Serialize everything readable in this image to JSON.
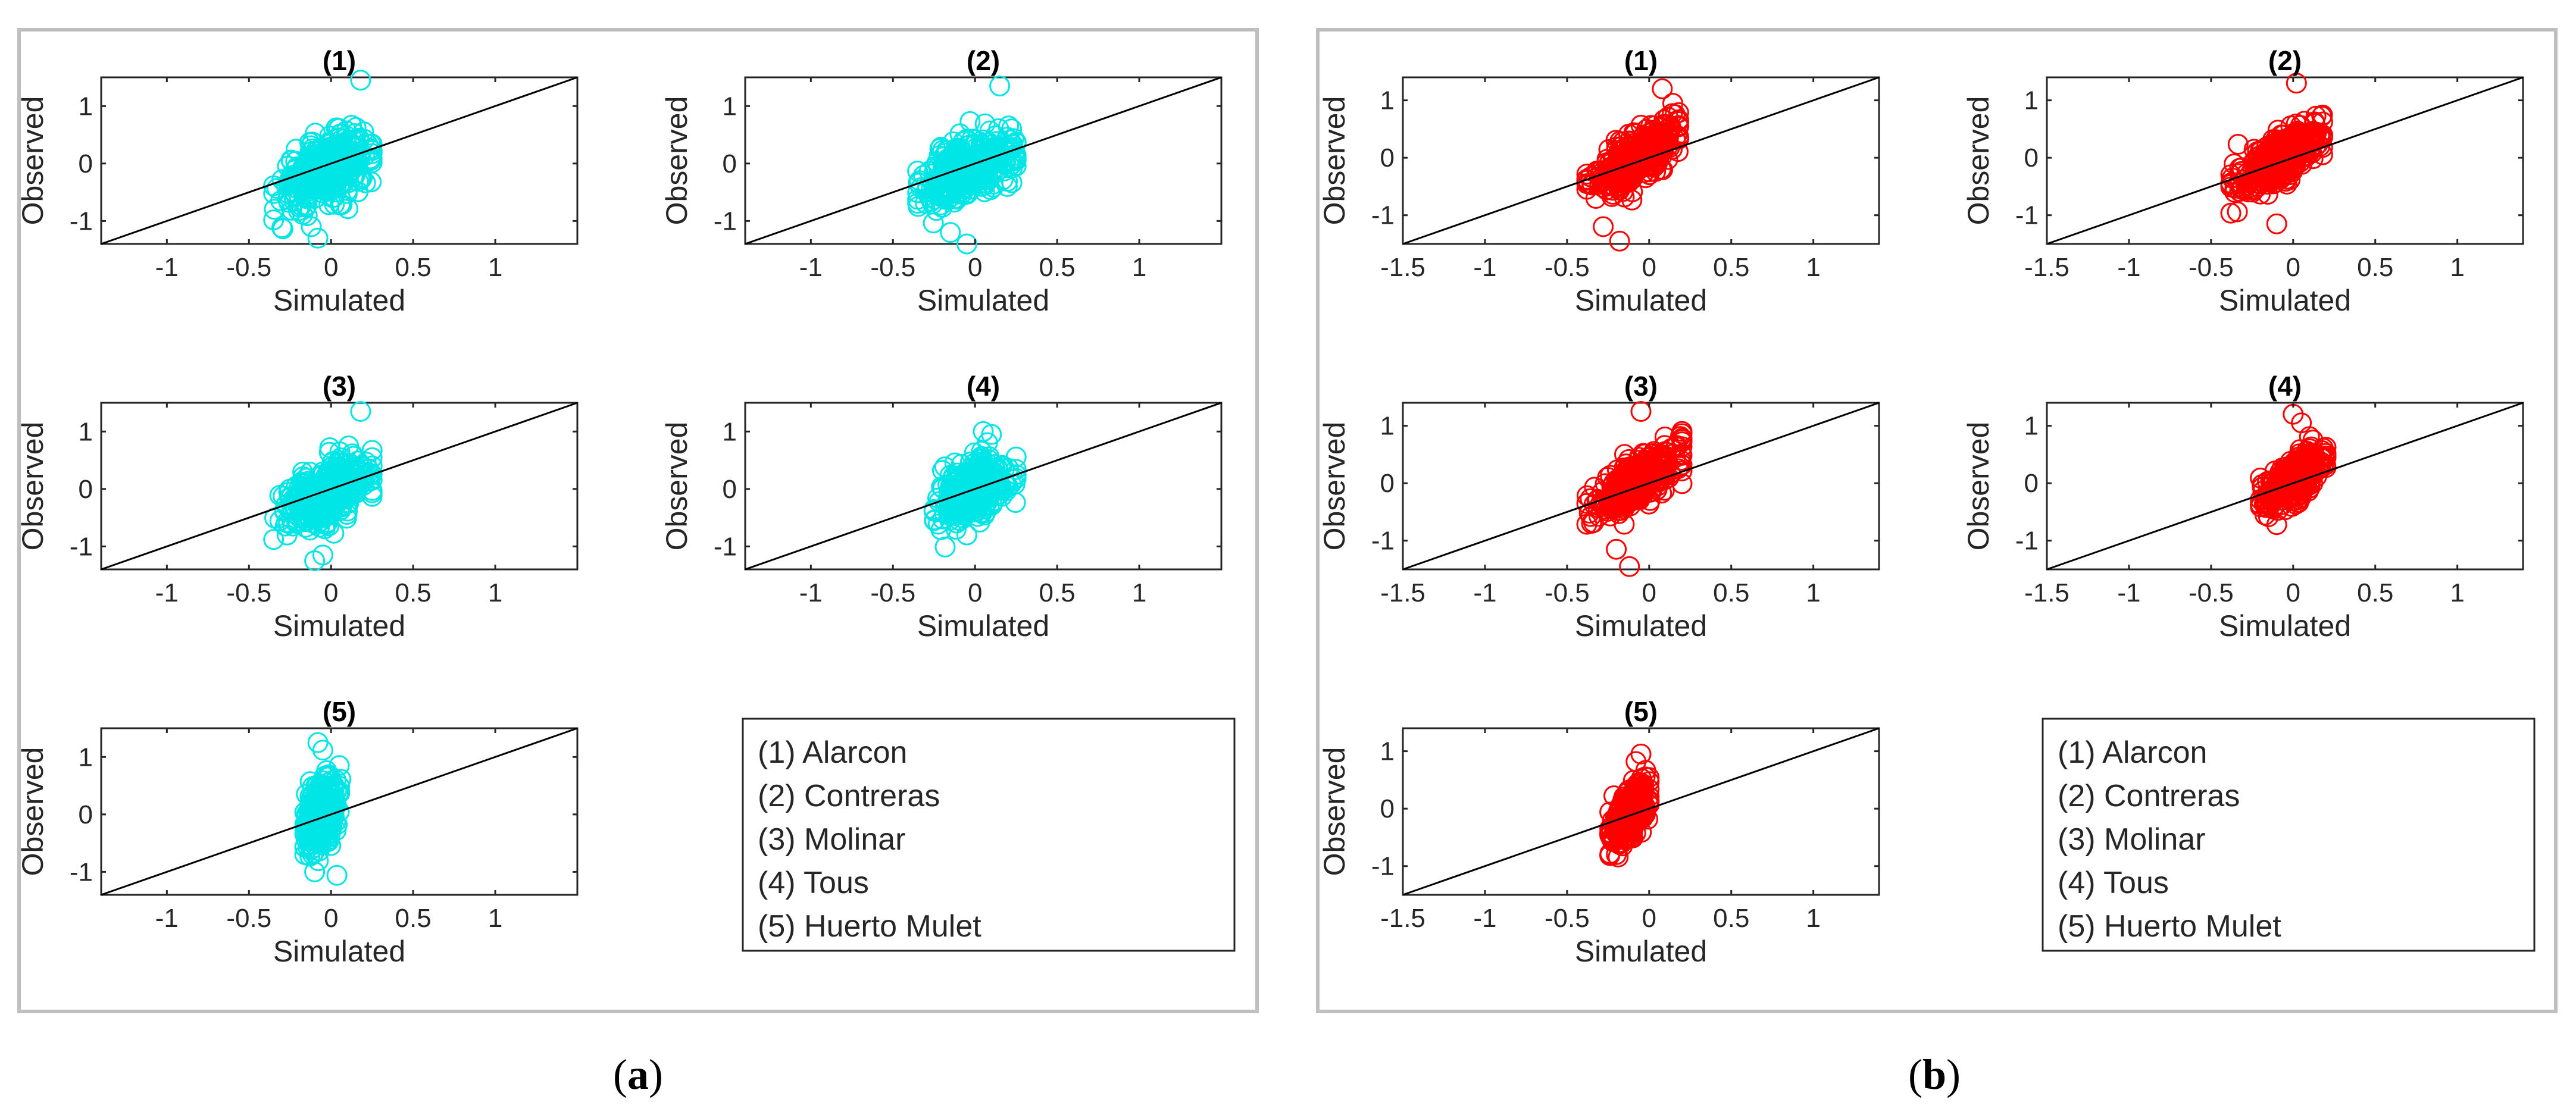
{
  "figure": {
    "captions": [
      {
        "open": "(",
        "letter": "a",
        "close": ")"
      },
      {
        "open": "(",
        "letter": "b",
        "close": ")"
      }
    ],
    "legend": [
      "(1) Alarcon",
      "(2) Contreras",
      "(3) Molinar",
      "(4) Tous",
      "(5) Huerto Mulet"
    ]
  },
  "colors": {
    "panel_a": "#00e5e5",
    "panel_b": "#ff0000"
  },
  "chart_data": [
    {
      "type": "scatter",
      "panel": "a",
      "marker": "open-circle",
      "title": "(1)",
      "xlabel": "Simulated",
      "ylabel": "Observed",
      "xlim": [
        -1.4,
        1.5
      ],
      "ylim": [
        -1.4,
        1.5
      ],
      "xticks": [
        -1,
        -0.5,
        0,
        0.5,
        1
      ],
      "xtick_labels": [
        "-1",
        "-0.5",
        "0",
        "0.5",
        "1"
      ],
      "yticks": [
        -1,
        0,
        1
      ],
      "ytick_labels": [
        "-1",
        "0",
        "1"
      ],
      "reference_line": "1:1",
      "cloud": {
        "x_mean": -0.02,
        "x_sd": 0.14,
        "x_min": -0.35,
        "x_max": 0.25,
        "y_mean": -0.1,
        "y_sd": 0.3,
        "corr": 0.5,
        "n": 380
      },
      "outliers": [
        [
          0.18,
          1.45
        ],
        [
          -0.08,
          -1.3
        ],
        [
          -0.12,
          -1.1
        ]
      ]
    },
    {
      "type": "scatter",
      "panel": "a",
      "marker": "open-circle",
      "title": "(2)",
      "xlabel": "Simulated",
      "ylabel": "Observed",
      "xlim": [
        -1.4,
        1.5
      ],
      "ylim": [
        -1.4,
        1.5
      ],
      "xticks": [
        -1,
        -0.5,
        0,
        0.5,
        1
      ],
      "xtick_labels": [
        "-1",
        "-0.5",
        "0",
        "0.5",
        "1"
      ],
      "yticks": [
        -1,
        0,
        1
      ],
      "ytick_labels": [
        "-1",
        "0",
        "1"
      ],
      "reference_line": "1:1",
      "cloud": {
        "x_mean": -0.03,
        "x_sd": 0.14,
        "x_min": -0.35,
        "x_max": 0.25,
        "y_mean": -0.1,
        "y_sd": 0.3,
        "corr": 0.5,
        "n": 380
      },
      "outliers": [
        [
          0.15,
          1.35
        ],
        [
          -0.05,
          -1.4
        ],
        [
          -0.15,
          -1.2
        ]
      ]
    },
    {
      "type": "scatter",
      "panel": "a",
      "marker": "open-circle",
      "title": "(3)",
      "xlabel": "Simulated",
      "ylabel": "Observed",
      "xlim": [
        -1.4,
        1.5
      ],
      "ylim": [
        -1.4,
        1.5
      ],
      "xticks": [
        -1,
        -0.5,
        0,
        0.5,
        1
      ],
      "xtick_labels": [
        "-1",
        "-0.5",
        "0",
        "0.5",
        "1"
      ],
      "yticks": [
        -1,
        0,
        1
      ],
      "ytick_labels": [
        "-1",
        "0",
        "1"
      ],
      "reference_line": "1:1",
      "cloud": {
        "x_mean": -0.04,
        "x_sd": 0.13,
        "x_min": -0.35,
        "x_max": 0.25,
        "y_mean": -0.1,
        "y_sd": 0.3,
        "corr": 0.5,
        "n": 380
      },
      "outliers": [
        [
          0.18,
          1.35
        ],
        [
          -0.1,
          -1.25
        ],
        [
          -0.05,
          -1.15
        ]
      ]
    },
    {
      "type": "scatter",
      "panel": "a",
      "marker": "open-circle",
      "title": "(4)",
      "xlabel": "Simulated",
      "ylabel": "Observed",
      "xlim": [
        -1.4,
        1.5
      ],
      "ylim": [
        -1.4,
        1.5
      ],
      "xticks": [
        -1,
        -0.5,
        0,
        0.5,
        1
      ],
      "xtick_labels": [
        "-1",
        "-0.5",
        "0",
        "0.5",
        "1"
      ],
      "yticks": [
        -1,
        0,
        1
      ],
      "ytick_labels": [
        "-1",
        "0",
        "1"
      ],
      "reference_line": "1:1",
      "cloud": {
        "x_mean": 0.0,
        "x_sd": 0.1,
        "x_min": -0.25,
        "x_max": 0.25,
        "y_mean": 0.0,
        "y_sd": 0.28,
        "corr": 0.5,
        "n": 380
      },
      "outliers": [
        [
          0.05,
          1.0
        ],
        [
          0.1,
          0.95
        ],
        [
          -0.05,
          -0.8
        ]
      ]
    },
    {
      "type": "scatter",
      "panel": "a",
      "marker": "open-circle",
      "title": "(5)",
      "xlabel": "Simulated",
      "ylabel": "Observed",
      "xlim": [
        -1.4,
        1.5
      ],
      "ylim": [
        -1.4,
        1.5
      ],
      "xticks": [
        -1,
        -0.5,
        0,
        0.5,
        1
      ],
      "xtick_labels": [
        "-1",
        "-0.5",
        "0",
        "0.5",
        "1"
      ],
      "yticks": [
        -1,
        0,
        1
      ],
      "ytick_labels": [
        "-1",
        "0",
        "1"
      ],
      "reference_line": "1:1",
      "cloud": {
        "x_mean": -0.06,
        "x_sd": 0.05,
        "x_min": -0.16,
        "x_max": 0.06,
        "y_mean": 0.0,
        "y_sd": 0.32,
        "corr": 0.4,
        "n": 380
      },
      "outliers": [
        [
          -0.08,
          1.25
        ],
        [
          -0.05,
          1.12
        ],
        [
          0.05,
          0.85
        ],
        [
          -0.1,
          -1.0
        ]
      ]
    },
    {
      "type": "scatter",
      "panel": "b",
      "marker": "open-circle",
      "title": "(1)",
      "xlabel": "Simulated",
      "ylabel": "Observed",
      "xlim": [
        -1.5,
        1.4
      ],
      "ylim": [
        -1.5,
        1.4
      ],
      "xticks": [
        -1.5,
        -1,
        -0.5,
        0,
        0.5,
        1
      ],
      "xtick_labels": [
        "-1.5",
        "-1",
        "-0.5",
        "0",
        "0.5",
        "1"
      ],
      "yticks": [
        -1,
        0,
        1
      ],
      "ytick_labels": [
        "-1",
        "0",
        "1"
      ],
      "reference_line": "1:1",
      "cloud": {
        "x_mean": -0.08,
        "x_sd": 0.13,
        "x_min": -0.38,
        "x_max": 0.18,
        "y_mean": 0.0,
        "y_sd": 0.3,
        "corr": 0.75,
        "n": 380
      },
      "outliers": [
        [
          0.08,
          1.2
        ],
        [
          -0.18,
          -1.45
        ],
        [
          -0.28,
          -1.2
        ]
      ]
    },
    {
      "type": "scatter",
      "panel": "b",
      "marker": "open-circle",
      "title": "(2)",
      "xlabel": "Simulated",
      "ylabel": "Observed",
      "xlim": [
        -1.5,
        1.4
      ],
      "ylim": [
        -1.5,
        1.4
      ],
      "xticks": [
        -1.5,
        -1,
        -0.5,
        0,
        0.5,
        1
      ],
      "xtick_labels": [
        "-1.5",
        "-1",
        "-0.5",
        "0",
        "0.5",
        "1"
      ],
      "yticks": [
        -1,
        0,
        1
      ],
      "ytick_labels": [
        "-1",
        "0",
        "1"
      ],
      "reference_line": "1:1",
      "cloud": {
        "x_mean": -0.08,
        "x_sd": 0.13,
        "x_min": -0.38,
        "x_max": 0.18,
        "y_mean": 0.0,
        "y_sd": 0.3,
        "corr": 0.75,
        "n": 380
      },
      "outliers": [
        [
          0.02,
          1.3
        ],
        [
          -0.1,
          -1.15
        ]
      ]
    },
    {
      "type": "scatter",
      "panel": "b",
      "marker": "open-circle",
      "title": "(3)",
      "xlabel": "Simulated",
      "ylabel": "Observed",
      "xlim": [
        -1.5,
        1.4
      ],
      "ylim": [
        -1.5,
        1.4
      ],
      "xticks": [
        -1.5,
        -1,
        -0.5,
        0,
        0.5,
        1
      ],
      "xtick_labels": [
        "-1.5",
        "-1",
        "-0.5",
        "0",
        "0.5",
        "1"
      ],
      "yticks": [
        -1,
        0,
        1
      ],
      "ytick_labels": [
        "-1",
        "0",
        "1"
      ],
      "reference_line": "1:1",
      "cloud": {
        "x_mean": -0.08,
        "x_sd": 0.13,
        "x_min": -0.38,
        "x_max": 0.2,
        "y_mean": 0.0,
        "y_sd": 0.3,
        "corr": 0.75,
        "n": 380
      },
      "outliers": [
        [
          -0.05,
          1.25
        ],
        [
          -0.12,
          -1.45
        ],
        [
          -0.2,
          -1.15
        ]
      ]
    },
    {
      "type": "scatter",
      "panel": "b",
      "marker": "open-circle",
      "title": "(4)",
      "xlabel": "Simulated",
      "ylabel": "Observed",
      "xlim": [
        -1.5,
        1.4
      ],
      "ylim": [
        -1.5,
        1.4
      ],
      "xticks": [
        -1.5,
        -1,
        -0.5,
        0,
        0.5,
        1
      ],
      "xtick_labels": [
        "-1.5",
        "-1",
        "-0.5",
        "0",
        "0.5",
        "1"
      ],
      "yticks": [
        -1,
        0,
        1
      ],
      "ytick_labels": [
        "-1",
        "0",
        "1"
      ],
      "reference_line": "1:1",
      "cloud": {
        "x_mean": 0.0,
        "x_sd": 0.09,
        "x_min": -0.2,
        "x_max": 0.2,
        "y_mean": 0.05,
        "y_sd": 0.25,
        "corr": 0.7,
        "n": 380
      },
      "outliers": [
        [
          0.0,
          1.2
        ],
        [
          0.05,
          1.05
        ],
        [
          -0.1,
          -0.72
        ]
      ]
    },
    {
      "type": "scatter",
      "panel": "b",
      "marker": "open-circle",
      "title": "(5)",
      "xlabel": "Simulated",
      "ylabel": "Observed",
      "xlim": [
        -1.5,
        1.4
      ],
      "ylim": [
        -1.5,
        1.4
      ],
      "xticks": [
        -1.5,
        -1,
        -0.5,
        0,
        0.5,
        1
      ],
      "xtick_labels": [
        "-1.5",
        "-1",
        "-0.5",
        "0",
        "0.5",
        "1"
      ],
      "yticks": [
        -1,
        0,
        1
      ],
      "ytick_labels": [
        "-1",
        "0",
        "1"
      ],
      "reference_line": "1:1",
      "cloud": {
        "x_mean": -0.12,
        "x_sd": 0.05,
        "x_min": -0.24,
        "x_max": 0.0,
        "y_mean": -0.1,
        "y_sd": 0.25,
        "corr": 0.55,
        "n": 380
      },
      "outliers": [
        [
          -0.05,
          0.95
        ],
        [
          -0.08,
          0.82
        ],
        [
          -0.2,
          -0.8
        ]
      ]
    }
  ]
}
